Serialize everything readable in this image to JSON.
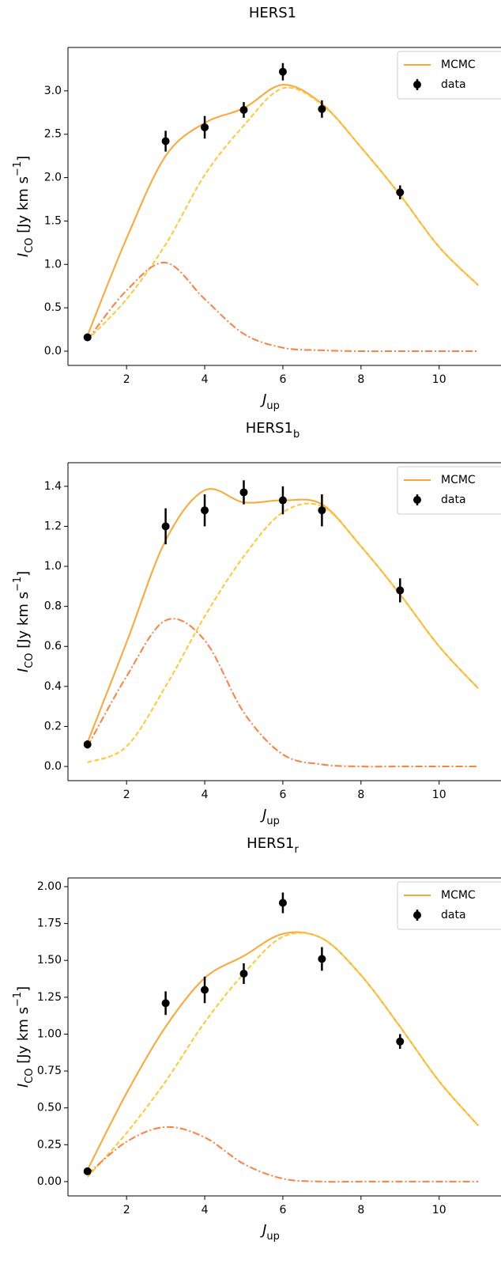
{
  "chart_data": [
    {
      "type": "line",
      "title": "HERS1",
      "xlabel": [
        "J",
        "up"
      ],
      "ylabel": [
        "I",
        "CO",
        " [Jy km s",
        "−1",
        "]"
      ],
      "xlim": [
        0.5,
        11.3
      ],
      "ylim": [
        -0.164,
        3.5
      ],
      "xticks": [
        2,
        4,
        6,
        8,
        10
      ],
      "yticks": [
        {
          "value": 0,
          "label": "0.0"
        },
        0.5,
        {
          "value": 1,
          "label": "1.0"
        },
        1.5,
        {
          "value": 2,
          "label": "2.0"
        },
        2.5,
        {
          "value": 3,
          "label": "3.0"
        }
      ],
      "legend": "upper right",
      "series": [
        {
          "name": "MCMC",
          "color": "#ffa533",
          "style": "solid",
          "x": [
            1,
            2,
            3,
            4,
            5,
            6,
            7,
            8,
            9,
            10,
            11
          ],
          "values": [
            0.18,
            1.3,
            2.25,
            2.63,
            2.8,
            3.07,
            2.85,
            2.35,
            1.8,
            1.2,
            0.76
          ]
        },
        {
          "color": "#ffc832",
          "style": "dashed",
          "x": [
            1,
            2,
            3,
            4,
            5,
            6,
            7,
            8,
            9,
            10,
            11
          ],
          "values": [
            0.13,
            0.6,
            1.23,
            2.03,
            2.6,
            3.03,
            2.84,
            2.35,
            1.8,
            1.2,
            0.76
          ]
        },
        {
          "color": "#ff7f3f",
          "style": "dashdot",
          "x": [
            1,
            2,
            3,
            4,
            5,
            6,
            7,
            8,
            9,
            10,
            11
          ],
          "values": [
            0.13,
            0.7,
            1.02,
            0.6,
            0.2,
            0.04,
            0.01,
            0,
            0,
            0,
            0
          ]
        },
        {
          "name": "data",
          "color": "#000000",
          "style": "errorbar",
          "x": [
            1,
            3,
            4,
            5,
            6,
            7,
            9
          ],
          "values": [
            0.16,
            2.42,
            2.58,
            2.78,
            3.22,
            2.79,
            1.83
          ],
          "errors": [
            0.04,
            0.12,
            0.13,
            0.09,
            0.1,
            0.1,
            0.08
          ]
        }
      ]
    },
    {
      "type": "line",
      "title": "HERS1",
      "title_sub": "b",
      "xlabel": [
        "J",
        "up"
      ],
      "ylabel": [
        "I",
        "CO",
        " [Jy km s",
        "−1",
        "]"
      ],
      "xlim": [
        0.5,
        11.3
      ],
      "ylim": [
        -0.071,
        1.518
      ],
      "xticks": [
        2,
        4,
        6,
        8,
        10
      ],
      "yticks": [
        {
          "value": 0,
          "label": "0.0"
        },
        0.2,
        0.4,
        0.6,
        0.8,
        {
          "value": 1,
          "label": "1.0"
        },
        1.2,
        1.4
      ],
      "legend": "upper right",
      "series": [
        {
          "name": "MCMC",
          "color": "#ffa533",
          "style": "solid",
          "x": [
            1,
            2,
            3,
            4,
            5,
            6,
            7,
            8,
            9,
            10,
            11
          ],
          "values": [
            0.12,
            0.62,
            1.13,
            1.38,
            1.32,
            1.33,
            1.31,
            1.1,
            0.86,
            0.6,
            0.39
          ]
        },
        {
          "color": "#ffc832",
          "style": "dashed",
          "x": [
            1,
            2,
            3,
            4,
            5,
            6,
            7,
            8,
            9,
            10,
            11
          ],
          "values": [
            0.02,
            0.1,
            0.4,
            0.75,
            1.05,
            1.27,
            1.3,
            1.1,
            0.86,
            0.6,
            0.39
          ]
        },
        {
          "color": "#ff7f3f",
          "style": "dashdot",
          "x": [
            1,
            2,
            3,
            4,
            5,
            6,
            7,
            8,
            9,
            10,
            11
          ],
          "values": [
            0.1,
            0.45,
            0.73,
            0.63,
            0.27,
            0.06,
            0.01,
            0,
            0,
            0,
            0
          ]
        },
        {
          "name": "data",
          "color": "#000000",
          "style": "errorbar",
          "x": [
            1,
            3,
            4,
            5,
            6,
            7,
            9
          ],
          "values": [
            0.11,
            1.2,
            1.28,
            1.37,
            1.33,
            1.28,
            0.88
          ],
          "errors": [
            0.02,
            0.09,
            0.08,
            0.06,
            0.07,
            0.08,
            0.06
          ]
        }
      ]
    },
    {
      "type": "line",
      "title": "HERS1",
      "title_sub": "r",
      "xlabel": [
        "J",
        "up"
      ],
      "ylabel": [
        "I",
        "CO",
        " [Jy km s",
        "−1",
        "]"
      ],
      "xlim": [
        0.5,
        11.3
      ],
      "ylim": [
        -0.097,
        2.059
      ],
      "xticks": [
        2,
        4,
        6,
        8,
        10
      ],
      "yticks": [
        {
          "value": 0,
          "label": "0.00"
        },
        0.25,
        {
          "value": 0.5,
          "label": "0.50"
        },
        0.75,
        {
          "value": 1,
          "label": "1.00"
        },
        1.25,
        {
          "value": 1.5,
          "label": "1.50"
        },
        1.75,
        {
          "value": 2,
          "label": "2.00"
        }
      ],
      "legend": "upper right",
      "series": [
        {
          "name": "MCMC",
          "color": "#ffa533",
          "style": "solid",
          "x": [
            1,
            2,
            3,
            4,
            5,
            6,
            7,
            8,
            9,
            10,
            11
          ],
          "values": [
            0.08,
            0.6,
            1.05,
            1.38,
            1.53,
            1.68,
            1.65,
            1.4,
            1.05,
            0.68,
            0.38
          ]
        },
        {
          "color": "#ffc832",
          "style": "dashed",
          "x": [
            1,
            2,
            3,
            4,
            5,
            6,
            7,
            8,
            9,
            10,
            11
          ],
          "values": [
            0.03,
            0.33,
            0.68,
            1.08,
            1.41,
            1.66,
            1.65,
            1.4,
            1.05,
            0.68,
            0.38
          ]
        },
        {
          "color": "#ff7f3f",
          "style": "dashdot",
          "x": [
            1,
            2,
            3,
            4,
            5,
            6,
            7,
            8,
            9,
            10,
            11
          ],
          "values": [
            0.05,
            0.27,
            0.37,
            0.3,
            0.12,
            0.02,
            0,
            0,
            0,
            0,
            0
          ]
        },
        {
          "name": "data",
          "color": "#000000",
          "style": "errorbar",
          "x": [
            1,
            3,
            4,
            5,
            6,
            7,
            9
          ],
          "values": [
            0.07,
            1.21,
            1.3,
            1.41,
            1.89,
            1.51,
            0.95
          ],
          "errors": [
            0.02,
            0.08,
            0.09,
            0.07,
            0.07,
            0.08,
            0.05
          ]
        }
      ]
    }
  ]
}
